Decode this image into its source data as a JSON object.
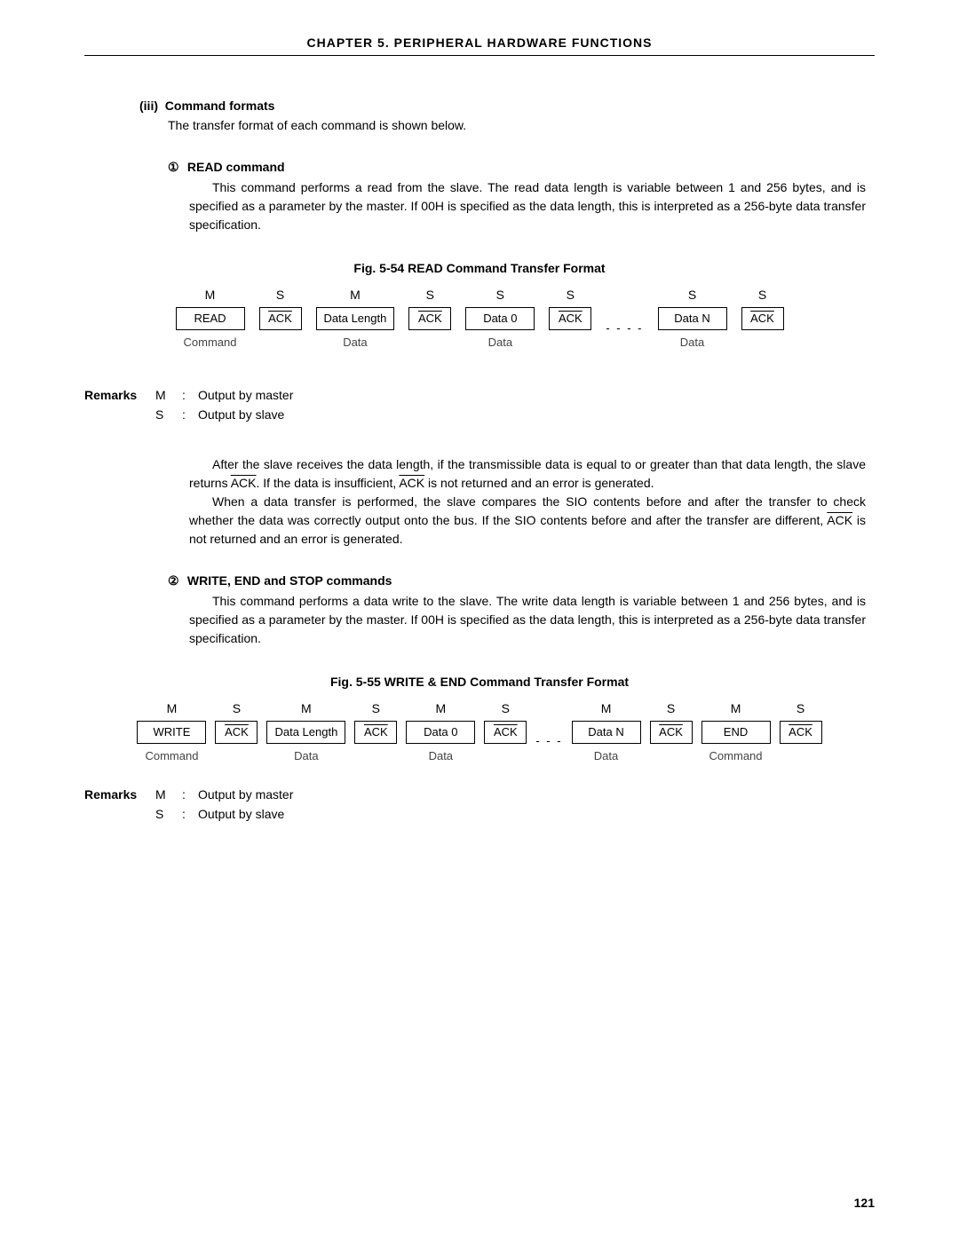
{
  "header": "CHAPTER  5.  PERIPHERAL  HARDWARE  FUNCTIONS",
  "section": {
    "num": "(iii)",
    "title": "Command formats",
    "intro": "The transfer format of each command is shown below."
  },
  "read": {
    "num": "①",
    "title": "READ command",
    "body": "This command performs a read from the slave. The read data length is variable between 1 and 256 bytes, and is specified as a parameter by the master. If 00H is specified as the data length, this is interpreted as a 256-byte data transfer specification."
  },
  "fig54": {
    "caption": "Fig. 5-54  READ Command Transfer Format",
    "items": [
      {
        "ms": "M",
        "box": "READ",
        "below": "Command",
        "wide": true,
        "ol": false
      },
      {
        "ms": "S",
        "box": "ACK",
        "below": "",
        "wide": false,
        "ol": true
      },
      {
        "ms": "M",
        "box": "Data Length",
        "below": "Data",
        "wide": true,
        "ol": false
      },
      {
        "ms": "S",
        "box": "ACK",
        "below": "",
        "wide": false,
        "ol": true
      },
      {
        "ms": "S",
        "box": "Data 0",
        "below": "Data",
        "wide": true,
        "ol": false
      },
      {
        "ms": "S",
        "box": "ACK",
        "below": "",
        "wide": false,
        "ol": true
      },
      {
        "dots": "- - - -"
      },
      {
        "ms": "S",
        "box": "Data N",
        "below": "Data",
        "wide": true,
        "ol": false
      },
      {
        "ms": "S",
        "box": "ACK",
        "below": "",
        "wide": false,
        "ol": true
      }
    ]
  },
  "remarks": {
    "label": "Remarks",
    "m": {
      "k": "M",
      "v": "Output by master"
    },
    "s": {
      "k": "S",
      "v": "Output by slave"
    }
  },
  "para1": {
    "p1a": "After the slave receives the data length, if the transmissible data is equal to or greater than that data length, the slave returns ",
    "ack1": "ACK",
    "p1b": ". If the data is insufficient, ",
    "ack2": "ACK",
    "p1c": " is not returned and an error is generated.",
    "p2a": "When a data transfer is performed, the slave compares the SIO contents before and after the transfer to check whether the data was correctly output onto the bus. If the SIO contents before and after the transfer are different, ",
    "ack3": "ACK",
    "p2b": " is not returned and an error is generated."
  },
  "write": {
    "num": "②",
    "title": "WRITE, END and STOP commands",
    "body": "This command performs a data write to the slave. The write data length is variable between 1 and 256 bytes, and is specified as a parameter by the master. If 00H is specified as the data length, this is interpreted as a 256-byte data transfer specification."
  },
  "fig55": {
    "caption": "Fig. 5-55  WRITE & END Command Transfer Format",
    "items": [
      {
        "ms": "M",
        "box": "WRITE",
        "below": "Command",
        "wide": true,
        "ol": false
      },
      {
        "ms": "S",
        "box": "ACK",
        "below": "",
        "wide": false,
        "ol": true
      },
      {
        "ms": "M",
        "box": "Data Length",
        "below": "Data",
        "wide": true,
        "ol": false
      },
      {
        "ms": "S",
        "box": "ACK",
        "below": "",
        "wide": false,
        "ol": true
      },
      {
        "ms": "M",
        "box": "Data 0",
        "below": "Data",
        "wide": true,
        "ol": false
      },
      {
        "ms": "S",
        "box": "ACK",
        "below": "",
        "wide": false,
        "ol": true
      },
      {
        "dots": "- - -"
      },
      {
        "ms": "M",
        "box": "Data N",
        "below": "Data",
        "wide": true,
        "ol": false
      },
      {
        "ms": "S",
        "box": "ACK",
        "below": "",
        "wide": false,
        "ol": true
      },
      {
        "ms": "M",
        "box": "END",
        "below": "Command",
        "wide": true,
        "ol": false
      },
      {
        "ms": "S",
        "box": "ACK",
        "below": "",
        "wide": false,
        "ol": true
      }
    ]
  },
  "page_number": "121"
}
